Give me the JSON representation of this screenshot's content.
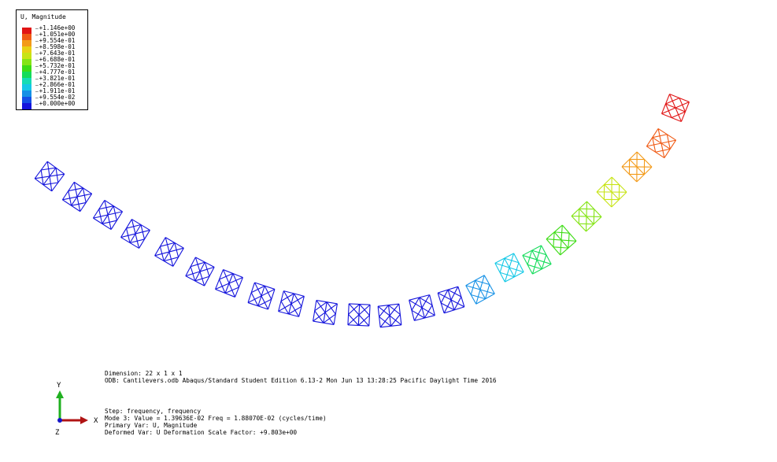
{
  "legend": {
    "title": "U, Magnitude",
    "entries": [
      {
        "label": "+1.146e+00",
        "color": "#e11414"
      },
      {
        "label": "+1.051e+00",
        "color": "#f05a14"
      },
      {
        "label": "+9.554e-01",
        "color": "#f39a18"
      },
      {
        "label": "+8.598e-01",
        "color": "#e8d014"
      },
      {
        "label": "+7.643e-01",
        "color": "#c7e414"
      },
      {
        "label": "+6.688e-01",
        "color": "#84e414"
      },
      {
        "label": "+5.732e-01",
        "color": "#3cdc14"
      },
      {
        "label": "+4.777e-01",
        "color": "#14dc5a"
      },
      {
        "label": "+3.821e-01",
        "color": "#14dcb4"
      },
      {
        "label": "+2.866e-01",
        "color": "#14c8e6"
      },
      {
        "label": "+1.911e-01",
        "color": "#1490e6"
      },
      {
        "label": "+9.554e-02",
        "color": "#1450e6"
      },
      {
        "label": "+0.000e+00",
        "color": "#1414dc"
      }
    ]
  },
  "model_info": {
    "dimension": "Dimension: 22 x 1 x 1",
    "odb": "ODB: Cantilevers.odb    Abaqus/Standard Student Edition 6.13-2    Mon Jun 13 13:28:25 Pacific Daylight Time 2016"
  },
  "step_info": {
    "step": "Step: frequency, frequency",
    "mode": "Mode        3: Value =  1.39636E-02 Freq =  1.88070E-02 (cycles/time)",
    "primary": "Primary Var: U, Magnitude",
    "deformed": "Deformed Var: U   Deformation Scale Factor: +9.803e+00"
  },
  "triad": {
    "x": "X",
    "y": "Y",
    "z": "Z"
  }
}
